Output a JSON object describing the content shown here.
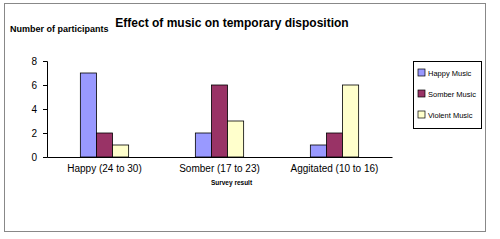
{
  "chart_data": {
    "type": "bar",
    "title": "Effect of music on temporary disposition",
    "y_label": "Number of participants",
    "x_label": "Survey result",
    "categories": [
      "Happy (24 to 30)",
      "Somber (17 to 23)",
      "Aggitated (10 to 16)"
    ],
    "series": [
      {
        "name": "Happy Music",
        "color": "#9999ff",
        "values": [
          7,
          2,
          1
        ]
      },
      {
        "name": "Somber Music",
        "color": "#993366",
        "values": [
          2,
          6,
          2
        ]
      },
      {
        "name": "Violent Music",
        "color": "#ffffcc",
        "values": [
          1,
          3,
          6
        ]
      }
    ],
    "ylim": [
      0,
      8
    ],
    "yticks": [
      0,
      2,
      4,
      6,
      8
    ],
    "grid": false,
    "legend": "right"
  }
}
